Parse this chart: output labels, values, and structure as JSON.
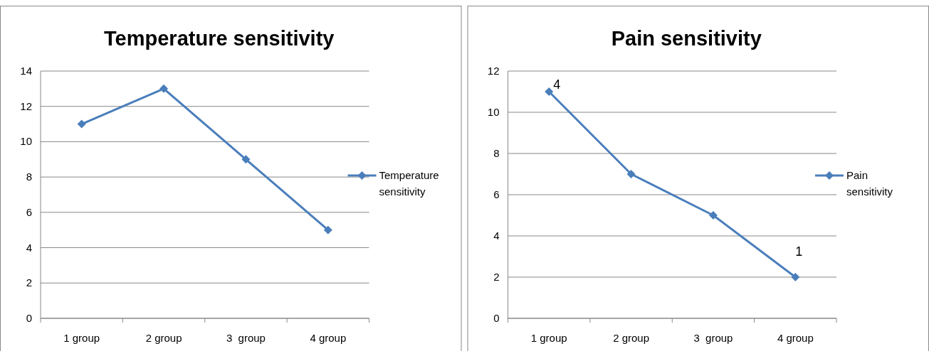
{
  "chart_data": [
    {
      "type": "line",
      "title": "Temperature sensitivity",
      "categories": [
        "1 group",
        "2 group",
        "3  group",
        "4 group"
      ],
      "series": [
        {
          "name": "Temperature sensitivity",
          "color": "#4a7ebb",
          "values": [
            11,
            13,
            9,
            5
          ]
        }
      ],
      "ylim": [
        0,
        14
      ],
      "yticks": [
        0,
        2,
        4,
        6,
        8,
        10,
        12,
        14
      ],
      "grid": "y",
      "legend": "right",
      "marker": "diamond"
    },
    {
      "type": "line",
      "title": "Pain sensitivity",
      "categories": [
        "1 group",
        "2 group",
        "3  group",
        "4 group"
      ],
      "series": [
        {
          "name": "Pain sensitivity",
          "color": "#4a7ebb",
          "values": [
            11,
            7,
            5,
            2
          ]
        }
      ],
      "ylim": [
        0,
        12
      ],
      "yticks": [
        0,
        2,
        4,
        6,
        8,
        10,
        12
      ],
      "grid": "y",
      "legend": "right",
      "marker": "diamond",
      "annotations": [
        {
          "text": "4",
          "x": "1 group",
          "y": 11
        },
        {
          "text": "1",
          "x": "4 group",
          "y": 2
        }
      ]
    }
  ]
}
